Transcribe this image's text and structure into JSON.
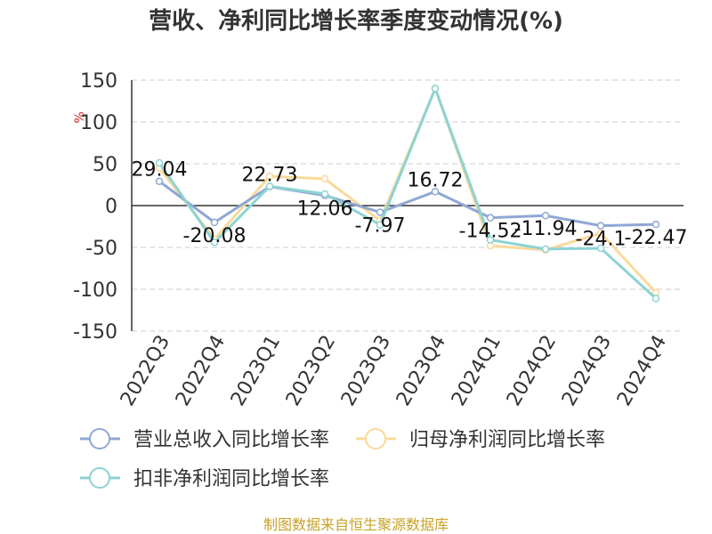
{
  "chart_data": {
    "type": "line",
    "title": "营收、净利同比增长率季度变动情况(%)",
    "ylabel": "%",
    "categories": [
      "2022Q3",
      "2022Q4",
      "2023Q1",
      "2023Q2",
      "2023Q3",
      "2023Q4",
      "2024Q1",
      "2024Q2",
      "2024Q3",
      "2024Q4"
    ],
    "ylim": [
      -150,
      150
    ],
    "yticks": [
      150,
      100,
      50,
      0,
      -50,
      -100,
      -150
    ],
    "grid": true,
    "legend_position": "bottom",
    "series": [
      {
        "name": "营业总收入同比增长率",
        "color": "#8fa7d4",
        "values": [
          29.04,
          -20.08,
          22.73,
          12.06,
          -7.97,
          16.72,
          -14.52,
          -11.94,
          -24.1,
          -22.47
        ],
        "labels": [
          "29.04",
          "-20.08",
          "22.73",
          "12.06",
          "-7.97",
          "16.72",
          "-14.52",
          "-11.94",
          "-24.1",
          "-22.47"
        ]
      },
      {
        "name": "归母净利润同比增长率",
        "color": "#fad99a",
        "values": [
          45,
          -40,
          35,
          32,
          -18,
          140,
          -48,
          -53,
          -33,
          -104
        ]
      },
      {
        "name": "扣非净利润同比增长率",
        "color": "#8dd3d3",
        "values": [
          51,
          -44,
          23,
          14,
          -23,
          140,
          -41,
          -52,
          -51,
          -111
        ]
      }
    ]
  },
  "source": "制图数据来自恒生聚源数据库",
  "source_color": "#c9a227",
  "ylabel_color": "#cc2222"
}
